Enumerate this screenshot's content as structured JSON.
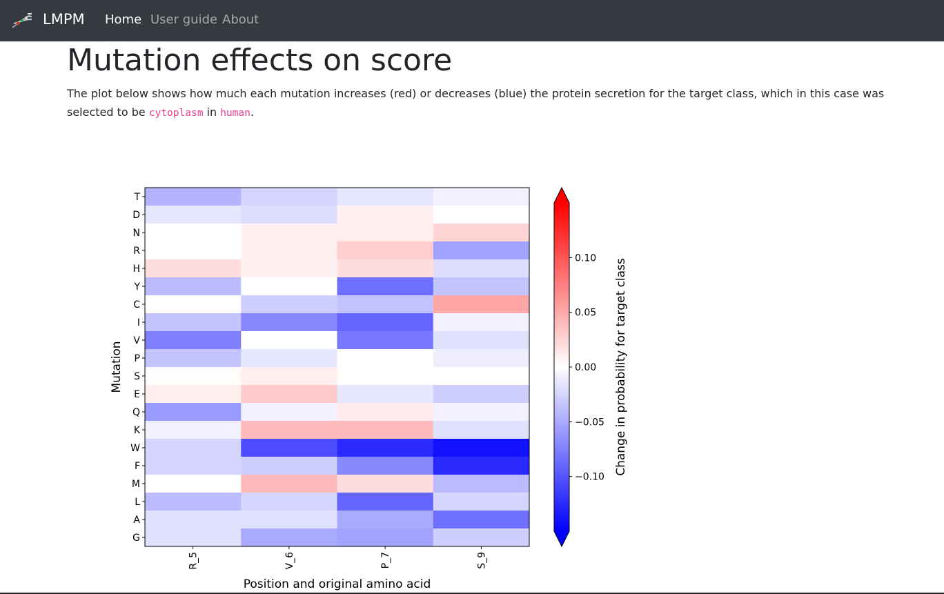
{
  "navbar": {
    "brand": "LMPM",
    "links": [
      {
        "label": "Home",
        "active": true
      },
      {
        "label": "User guide",
        "active": false
      },
      {
        "label": "About",
        "active": false
      }
    ],
    "logo_icon": "dna-icon",
    "background": "#343a40"
  },
  "page": {
    "title": "Mutation effects on score",
    "description_before": "The plot below shows how much each mutation increases (red) or decreases (blue) the protein secretion for the target class, which in this case was selected to be ",
    "target_class": "cytoplasm",
    "description_middle": " in ",
    "organism": "human",
    "description_after": "."
  },
  "chart_data": {
    "type": "heatmap",
    "xlabel": "Position and original amino acid",
    "ylabel": "Mutation",
    "x_categories": [
      "R_5",
      "V_6",
      "P_7",
      "S_9"
    ],
    "y_categories": [
      "T",
      "D",
      "N",
      "R",
      "H",
      "Y",
      "C",
      "I",
      "V",
      "P",
      "S",
      "E",
      "Q",
      "K",
      "W",
      "F",
      "M",
      "L",
      "A",
      "G"
    ],
    "values": [
      [
        -0.045,
        -0.025,
        -0.015,
        -0.008
      ],
      [
        -0.015,
        -0.02,
        0.008,
        0.0
      ],
      [
        0.0,
        0.008,
        0.01,
        0.025
      ],
      [
        0.0,
        0.008,
        0.028,
        -0.055
      ],
      [
        0.02,
        0.008,
        0.02,
        -0.02
      ],
      [
        -0.04,
        0.0,
        -0.085,
        -0.035
      ],
      [
        0.0,
        -0.028,
        -0.035,
        0.052
      ],
      [
        -0.035,
        -0.07,
        -0.09,
        -0.008
      ],
      [
        -0.075,
        0.0,
        -0.08,
        -0.018
      ],
      [
        -0.035,
        -0.015,
        0.0,
        -0.01
      ],
      [
        0.002,
        0.01,
        0.0,
        0.0
      ],
      [
        0.01,
        0.03,
        -0.015,
        -0.028
      ],
      [
        -0.06,
        -0.008,
        0.012,
        -0.008
      ],
      [
        -0.008,
        0.04,
        0.04,
        -0.018
      ],
      [
        -0.025,
        -0.105,
        -0.125,
        -0.14
      ],
      [
        -0.025,
        -0.028,
        -0.07,
        -0.125
      ],
      [
        0.0,
        0.04,
        0.02,
        -0.04
      ],
      [
        -0.04,
        -0.025,
        -0.09,
        -0.025
      ],
      [
        -0.018,
        -0.018,
        -0.05,
        -0.085
      ],
      [
        -0.018,
        -0.05,
        -0.055,
        -0.028
      ]
    ],
    "colorbar": {
      "label": "Change in probability for target class",
      "colormap": "bwr",
      "vmin": -0.15,
      "vmax": 0.15,
      "ticks": [
        0.1,
        0.05,
        0.0,
        -0.05,
        -0.1
      ],
      "tick_labels": [
        "0.10",
        "0.05",
        "0.00",
        "−0.05",
        "−0.10"
      ],
      "extend": "both"
    }
  }
}
